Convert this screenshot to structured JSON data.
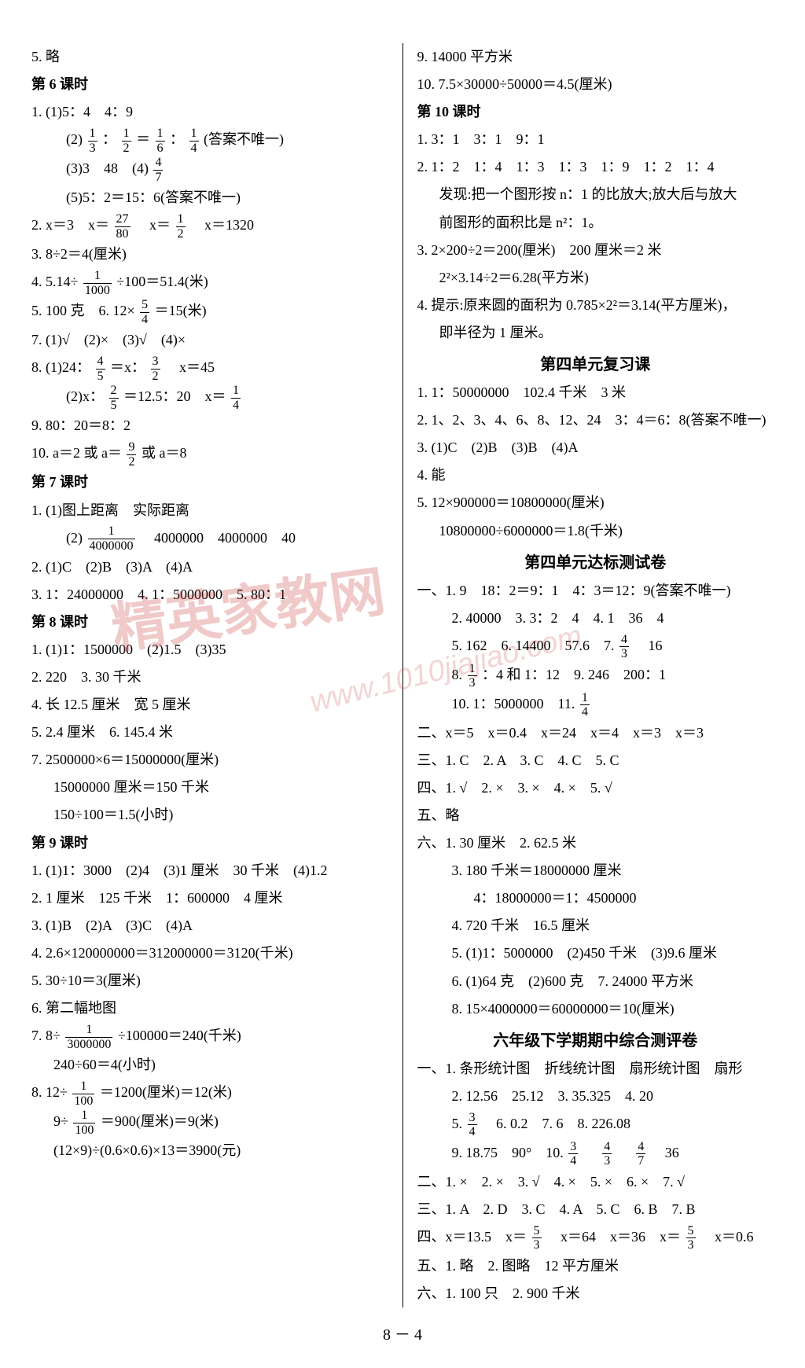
{
  "watermark": {
    "text": "精英家教网",
    "url": "www.1010jiajiao.com"
  },
  "page_footer": "8 － 4",
  "left": {
    "l5": "5. 略",
    "lesson6": "第 6 课时",
    "l6_1": "1. (1)5：4　4：9",
    "l6_1_2a": "(2)",
    "l6_1_2b": "：",
    "l6_1_2c": "＝",
    "l6_1_2d": "：",
    "l6_1_2e": "(答案不唯一)",
    "l6_1_3": "(3)3　48　(4)",
    "l6_1_5": "(5)5：2＝15：6(答案不唯一)",
    "l6_2a": "2. x＝3　x＝",
    "l6_2b": "　x＝",
    "l6_2c": "　x＝1320",
    "l6_3": "3. 8÷2＝4(厘米)",
    "l6_4a": "4. 5.14÷",
    "l6_4b": "÷100＝51.4(米)",
    "l6_5a": "5. 100 克　6. 12×",
    "l6_5b": "＝15(米)",
    "l6_7": "7. (1)√　(2)×　(3)√　(4)×",
    "l6_8_1a": "8. (1)24：",
    "l6_8_1b": "＝x：",
    "l6_8_1c": "　x＝45",
    "l6_8_2a": "(2)x：",
    "l6_8_2b": "＝12.5：20　x＝",
    "l6_9": "9. 80：20＝8：2",
    "l6_10a": "10. a＝2 或 a＝",
    "l6_10b": "或 a＝8",
    "lesson7": "第 7 课时",
    "l7_1_1": "1. (1)图上距离　实际距离",
    "l7_1_2a": "(2)",
    "l7_1_2b": "　4000000　4000000　40",
    "l7_2": "2. (1)C　(2)B　(3)A　(4)A",
    "l7_3": "3. 1：24000000　4. 1：5000000　5. 80：1",
    "lesson8": "第 8 课时",
    "l8_1": "1. (1)1：1500000　(2)1.5　(3)35",
    "l8_2": "2. 220　3. 30 千米",
    "l8_4": "4. 长 12.5 厘米　宽 5 厘米",
    "l8_5": "5. 2.4 厘米　6. 145.4 米",
    "l8_7a": "7. 2500000×6＝15000000(厘米)",
    "l8_7b": "15000000 厘米＝150 千米",
    "l8_7c": "150÷100＝1.5(小时)",
    "lesson9": "第 9 课时",
    "l9_1": "1. (1)1：3000　(2)4　(3)1 厘米　30 千米　(4)1.2",
    "l9_2": "2. 1 厘米　125 千米　1：600000　4 厘米",
    "l9_3": "3. (1)B　(2)A　(3)C　(4)A",
    "l9_4": "4. 2.6×120000000＝312000000＝3120(千米)",
    "l9_5": "5. 30÷10＝3(厘米)",
    "l9_6": "6. 第二幅地图",
    "l9_7a": "7. 8÷",
    "l9_7b": "÷100000＝240(千米)",
    "l9_7c": "240÷60＝4(小时)",
    "l9_8a": "8. 12÷",
    "l9_8b": "＝1200(厘米)＝12(米)",
    "l9_8c_a": "9÷",
    "l9_8c_b": "＝900(厘米)＝9(米)",
    "l9_8d": "(12×9)÷(0.6×0.6)×13＝3900(元)",
    "frac_1_3": {
      "num": "1",
      "den": "3"
    },
    "frac_1_2": {
      "num": "1",
      "den": "2"
    },
    "frac_1_6": {
      "num": "1",
      "den": "6"
    },
    "frac_1_4": {
      "num": "1",
      "den": "4"
    },
    "frac_4_7": {
      "num": "4",
      "den": "7"
    },
    "frac_27_80": {
      "num": "27",
      "den": "80"
    },
    "frac_1_1000": {
      "num": "1",
      "den": "1000"
    },
    "frac_5_4": {
      "num": "5",
      "den": "4"
    },
    "frac_4_5": {
      "num": "4",
      "den": "5"
    },
    "frac_3_2": {
      "num": "3",
      "den": "2"
    },
    "frac_2_5": {
      "num": "2",
      "den": "5"
    },
    "frac_9_2": {
      "num": "9",
      "den": "2"
    },
    "frac_1_4m": {
      "num": "1",
      "den": "4000000"
    },
    "frac_1_3m": {
      "num": "1",
      "den": "3000000"
    },
    "frac_1_100": {
      "num": "1",
      "den": "100"
    }
  },
  "right": {
    "r9_9": "9. 14000 平方米",
    "r9_10": "10. 7.5×30000÷50000＝4.5(厘米)",
    "lesson10": "第 10 课时",
    "r10_1": "1. 3：1　3：1　9：1",
    "r10_2a": "2. 1：2　1：4　1：3　1：3　1：9　1：2　1：4",
    "r10_2b": "发现:把一个图形按 n：1 的比放大;放大后与放大",
    "r10_2c": "前图形的面积比是 n²：1。",
    "r10_3a": "3. 2×200÷2＝200(厘米)　200 厘米＝2 米",
    "r10_3b": "2²×3.14÷2＝6.28(平方米)",
    "r10_4a": "4. 提示:原来圆的面积为 0.785×2²＝3.14(平方厘米)，",
    "r10_4b": "即半径为 1 厘米。",
    "rev4_title": "第四单元复习课",
    "rev4_1": "1. 1：50000000　102.4 千米　3 米",
    "rev4_2": "2. 1、2、3、4、6、8、12、24　3：4＝6：8(答案不唯一)",
    "rev4_3": "3. (1)C　(2)B　(3)B　(4)A",
    "rev4_4": "4. 能",
    "rev4_5a": "5. 12×900000＝10800000(厘米)",
    "rev4_5b": "10800000÷6000000＝1.8(千米)",
    "test4_title": "第四单元达标测试卷",
    "t4_1_1": "一、1. 9　18：2＝9：1　4：3＝12：9(答案不唯一)",
    "t4_1_2": "2. 40000　3. 3：2　4　4. 1　36　4",
    "t4_1_5a": "5. 162　6. 14400　57.6　7. ",
    "t4_1_5b": "　16",
    "t4_1_8a": "8. ",
    "t4_1_8b": "：4 和 1：12　9. 246　200：1",
    "t4_1_10a": "10. 1：5000000　11. ",
    "t4_2": "二、x＝5　x＝0.4　x＝24　x＝4　x＝3　x＝3",
    "t4_3": "三、1. C　2. A　3. C　4. C　5. C",
    "t4_4": "四、1. √　2. ×　3. ×　4. ×　5. √",
    "t4_5": "五、略",
    "t4_6_1": "六、1. 30 厘米　2. 62.5 米",
    "t4_6_3a": "3. 180 千米＝18000000 厘米",
    "t4_6_3b": "4：18000000＝1：4500000",
    "t4_6_4": "4. 720 千米　16.5 厘米",
    "t4_6_5": "5. (1)1：5000000　(2)450 千米　(3)9.6 厘米",
    "t4_6_6": "6. (1)64 克　(2)600 克　7. 24000 平方米",
    "t4_6_8": "8. 15×4000000＝60000000＝10(厘米)",
    "mid_title": "六年级下学期期中综合测评卷",
    "m1_1": "一、1. 条形统计图　折线统计图　扇形统计图　扇形",
    "m1_2": "2. 12.56　25.12　3. 35.325　4. 20",
    "m1_5a": "5. ",
    "m1_5b": "　6. 0.2　7. 6　8. 226.08",
    "m1_9a": "9. 18.75　90°　10. ",
    "m1_9b": "　",
    "m1_9c": "　",
    "m1_9d": "　36",
    "m2": "二、1. ×　2. ×　3. √　4. ×　5. ×　6. ×　7. √",
    "m3": "三、1. A　2. D　3. C　4. A　5. C　6. B　7. B",
    "m4a": "四、x＝13.5　x＝",
    "m4b": "　x＝64　x＝36　x＝",
    "m4c": "　x＝0.6",
    "m5": "五、1. 略　2. 图略　12 平方厘米",
    "m6": "六、1. 100 只　2. 900 千米",
    "frac_4_3": {
      "num": "4",
      "den": "3"
    },
    "frac_1_3r": {
      "num": "1",
      "den": "3"
    },
    "frac_1_4r": {
      "num": "1",
      "den": "4"
    },
    "frac_3_4": {
      "num": "3",
      "den": "4"
    },
    "frac_4_7r": {
      "num": "4",
      "den": "7"
    },
    "frac_5_3": {
      "num": "5",
      "den": "3"
    }
  }
}
